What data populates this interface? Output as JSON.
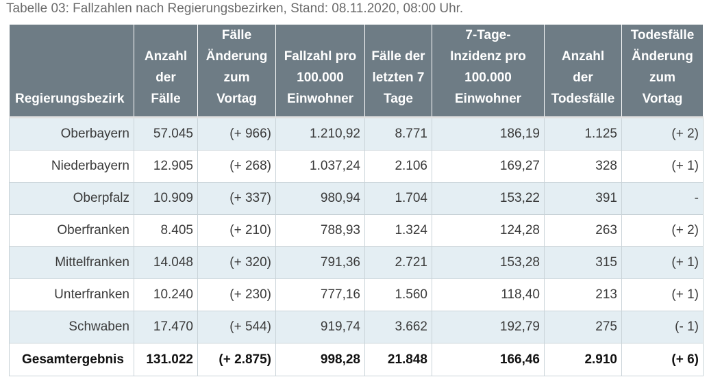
{
  "caption": "Tabelle 03: Fallzahlen nach Regierungsbezirken, Stand: 08.11.2020, 08:00 Uhr.",
  "columns": [
    [
      "Regierungsbezirk"
    ],
    [
      "Anzahl",
      "der",
      "Fälle"
    ],
    [
      "Fälle",
      "Änderung",
      "zum",
      "Vortag"
    ],
    [
      "Fallzahl pro",
      "100.000",
      "Einwohner"
    ],
    [
      "Fälle der",
      "letzten 7",
      "Tage"
    ],
    [
      "7-Tage-",
      "Inzidenz pro",
      "100.000",
      "Einwohner"
    ],
    [
      "Anzahl",
      "der",
      "Todesfälle"
    ],
    [
      "Todesfälle",
      "Änderung",
      "zum",
      "Vortag"
    ]
  ],
  "rows": [
    [
      "Oberbayern",
      "57.045",
      "(+ 966)",
      "1.210,92",
      "8.771",
      "186,19",
      "1.125",
      "(+ 2)"
    ],
    [
      "Niederbayern",
      "12.905",
      "(+ 268)",
      "1.037,24",
      "2.106",
      "169,27",
      "328",
      "(+ 1)"
    ],
    [
      "Oberpfalz",
      "10.909",
      "(+ 337)",
      "980,94",
      "1.704",
      "153,22",
      "391",
      "-"
    ],
    [
      "Oberfranken",
      "8.405",
      "(+ 210)",
      "788,93",
      "1.324",
      "124,28",
      "263",
      "(+ 2)"
    ],
    [
      "Mittelfranken",
      "14.048",
      "(+ 320)",
      "791,36",
      "2.721",
      "153,28",
      "315",
      "(+ 1)"
    ],
    [
      "Unterfranken",
      "10.240",
      "(+ 230)",
      "777,16",
      "1.560",
      "118,40",
      "213",
      "(+ 1)"
    ],
    [
      "Schwaben",
      "17.470",
      "(+ 544)",
      "919,74",
      "3.662",
      "192,79",
      "275",
      "(- 1)"
    ]
  ],
  "total": [
    "Gesamtergebnis",
    "131.022",
    "(+ 2.875)",
    "998,28",
    "21.848",
    "166,46",
    "2.910",
    "(+ 6)"
  ],
  "colors": {
    "header_bg": "#6e7c85",
    "header_text": "#ffffff",
    "row_stripe": "#e4eef3",
    "cell_border": "#c9d3d8",
    "caption_text": "#6b6b6b"
  }
}
